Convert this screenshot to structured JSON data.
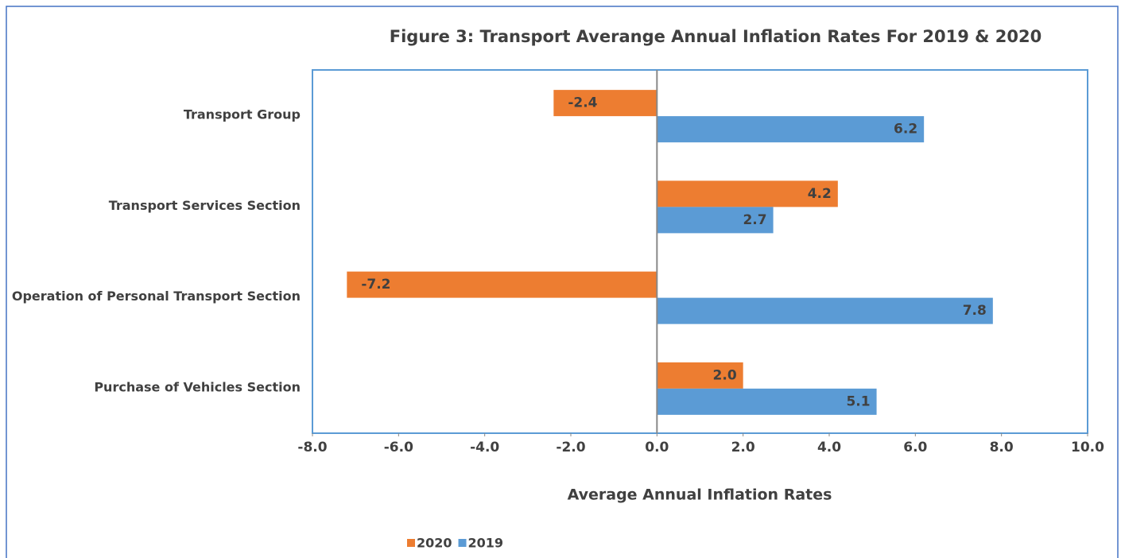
{
  "chart_data": {
    "type": "hbar",
    "title": "Figure 3: Transport Averange Annual Inflation Rates For 2019 & 2020",
    "x_label": "Average Annual Inflation Rates",
    "categories": [
      "Transport Group",
      "Transport Services Section",
      "Operation of Personal Transport Section",
      "Purchase of Vehicles Section"
    ],
    "series": [
      {
        "name": "2020",
        "color": "#ed7d31",
        "values": [
          -2.4,
          4.2,
          -7.2,
          2
        ],
        "value_labels": [
          "-2.4",
          "4.2",
          "-7.2",
          "2.0"
        ]
      },
      {
        "name": "2019",
        "color": "#5b9bd5",
        "values": [
          6.2,
          2.7,
          7.8,
          5.1
        ],
        "value_labels": [
          "6.2",
          "2.7",
          "7.8",
          "5.1"
        ]
      }
    ],
    "xlim": [
      -8,
      10
    ],
    "xticks": [
      {
        "value": -8,
        "label": "-8.0"
      },
      {
        "value": -6,
        "label": "-6.0"
      },
      {
        "value": -4,
        "label": "-4.0"
      },
      {
        "value": -2,
        "label": "-2.0"
      },
      {
        "value": 0,
        "label": "0.0"
      },
      {
        "value": 2,
        "label": "2.0"
      },
      {
        "value": 4,
        "label": "4.0"
      },
      {
        "value": 6,
        "label": "6.0"
      },
      {
        "value": 8,
        "label": "8.0"
      },
      {
        "value": 10,
        "label": "10.0"
      }
    ],
    "legend": "bottom"
  }
}
